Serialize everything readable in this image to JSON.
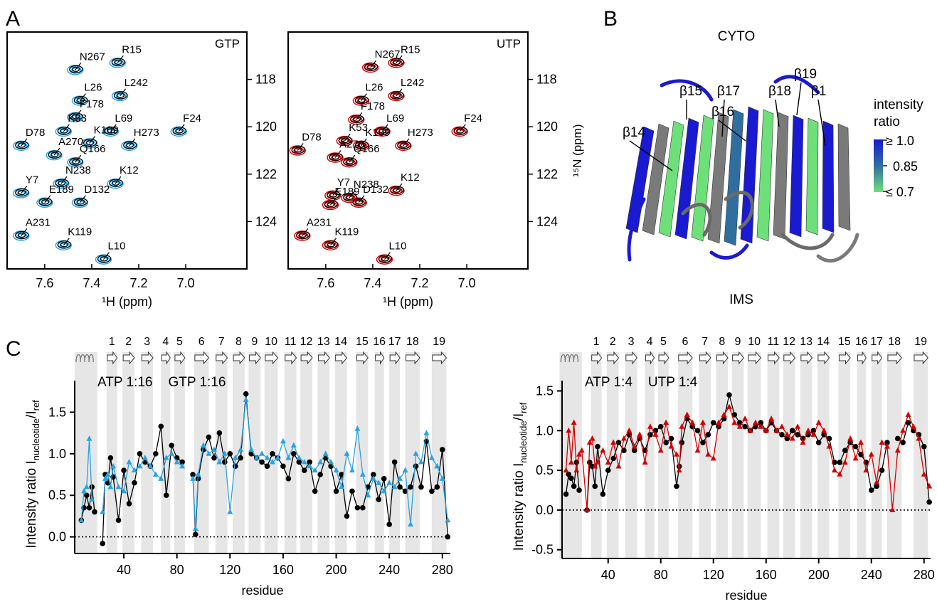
{
  "panel_labels": [
    "A",
    "B",
    "C"
  ],
  "topology": {
    "helix_range": [
      3,
      20
    ],
    "strands": [
      {
        "label": "1",
        "range": [
          27,
          35
        ]
      },
      {
        "label": "2",
        "range": [
          39,
          48
        ]
      },
      {
        "label": "3",
        "range": [
          53,
          62
        ]
      },
      {
        "label": "4",
        "range": [
          68,
          75
        ]
      },
      {
        "label": "5",
        "range": [
          78,
          86
        ]
      },
      {
        "label": "6",
        "range": [
          93,
          104
        ]
      },
      {
        "label": "7",
        "range": [
          109,
          118
        ]
      },
      {
        "label": "8",
        "range": [
          122,
          131
        ]
      },
      {
        "label": "9",
        "range": [
          134,
          143
        ]
      },
      {
        "label": "10",
        "range": [
          146,
          156
        ]
      },
      {
        "label": "11",
        "range": [
          161,
          170
        ]
      },
      {
        "label": "12",
        "range": [
          173,
          182
        ]
      },
      {
        "label": "13",
        "range": [
          186,
          195
        ]
      },
      {
        "label": "14",
        "range": [
          199,
          208
        ]
      },
      {
        "label": "15",
        "range": [
          215,
          224
        ]
      },
      {
        "label": "16",
        "range": [
          229,
          236
        ]
      },
      {
        "label": "17",
        "range": [
          240,
          248
        ]
      },
      {
        "label": "18",
        "range": [
          252,
          263
        ]
      },
      {
        "label": "19",
        "range": [
          272,
          283
        ]
      }
    ]
  },
  "structure": {
    "top": "CYTO",
    "bottom": "IMS",
    "strands": [
      "β14",
      "β15",
      "β16",
      "β17",
      "β18",
      "β19",
      "β1"
    ],
    "colorbar": {
      "title": [
        "intensity",
        "ratio"
      ],
      "labels": [
        "≥ 1.0",
        "0.85",
        "≤ 0.7"
      ],
      "colors": [
        "#1a1ad0",
        "#2f6fa0",
        "#6ee07a"
      ]
    }
  },
  "chart_data": [
    {
      "type": "spectrum",
      "label": "GTP",
      "xlabel": "¹H (ppm)",
      "xlim": [
        7.76,
        6.74
      ],
      "ylim": [
        116,
        126
      ],
      "y_inverted": true,
      "xticks": [
        7.6,
        7.4,
        7.2,
        {
          "value": 7,
          "label": "7.0"
        }
      ],
      "yticks": [
        118,
        120,
        122,
        124
      ],
      "colors": {
        "reference": "#000000",
        "nucleotide": "#29a3e0"
      },
      "peaks": [
        {
          "label": "N267",
          "x": 7.47,
          "y": 117.6
        },
        {
          "label": "R15",
          "x": 7.29,
          "y": 117.3
        },
        {
          "label": "L26",
          "x": 7.45,
          "y": 118.9
        },
        {
          "label": "L242",
          "x": 7.28,
          "y": 118.7
        },
        {
          "label": "F178",
          "x": 7.47,
          "y": 119.6
        },
        {
          "label": "F24",
          "x": 7.03,
          "y": 120.2
        },
        {
          "label": "K53",
          "x": 7.52,
          "y": 120.2
        },
        {
          "label": "L69",
          "x": 7.32,
          "y": 120.2
        },
        {
          "label": "D78",
          "x": 7.7,
          "y": 120.8
        },
        {
          "label": "K109",
          "x": 7.41,
          "y": 120.7
        },
        {
          "label": "H273",
          "x": 7.24,
          "y": 120.8
        },
        {
          "label": "A270",
          "x": 7.56,
          "y": 121.2
        },
        {
          "label": "Q166",
          "x": 7.47,
          "y": 121.5
        },
        {
          "label": "K12",
          "x": 7.3,
          "y": 122.4
        },
        {
          "label": "N238",
          "x": 7.53,
          "y": 122.4
        },
        {
          "label": "Y7",
          "x": 7.7,
          "y": 122.8
        },
        {
          "label": "E189",
          "x": 7.6,
          "y": 123.2
        },
        {
          "label": "D132",
          "x": 7.45,
          "y": 123.2
        },
        {
          "label": "A231",
          "x": 7.7,
          "y": 124.6
        },
        {
          "label": "K119",
          "x": 7.52,
          "y": 125.0
        },
        {
          "label": "L10",
          "x": 7.35,
          "y": 125.6
        }
      ]
    },
    {
      "type": "spectrum",
      "label": "UTP",
      "xlabel": "¹H (ppm)",
      "ylabel": "¹⁵N (ppm)",
      "xlim": [
        7.76,
        6.74
      ],
      "ylim": [
        116,
        126
      ],
      "y_inverted": true,
      "xticks": [
        7.6,
        7.4,
        7.2,
        {
          "value": 7,
          "label": "7.0"
        }
      ],
      "yticks": [
        118,
        120,
        122,
        124
      ],
      "colors": {
        "reference": "#000000",
        "nucleotide": "#d40000"
      },
      "peaks": [
        {
          "label": "N267",
          "x": 7.41,
          "y": 117.5
        },
        {
          "label": "R15",
          "x": 7.3,
          "y": 117.3
        },
        {
          "label": "L26",
          "x": 7.45,
          "y": 118.9
        },
        {
          "label": "L242",
          "x": 7.3,
          "y": 118.7
        },
        {
          "label": "F178",
          "x": 7.47,
          "y": 119.7
        },
        {
          "label": "F24",
          "x": 7.03,
          "y": 120.2
        },
        {
          "label": "K53",
          "x": 7.52,
          "y": 120.6
        },
        {
          "label": "L69",
          "x": 7.36,
          "y": 120.2
        },
        {
          "label": "D78",
          "x": 7.72,
          "y": 121.0
        },
        {
          "label": "K109",
          "x": 7.45,
          "y": 120.8
        },
        {
          "label": "H273",
          "x": 7.27,
          "y": 120.8
        },
        {
          "label": "A270",
          "x": 7.56,
          "y": 121.3
        },
        {
          "label": "Q166",
          "x": 7.5,
          "y": 121.5
        },
        {
          "label": "K12",
          "x": 7.3,
          "y": 122.7
        },
        {
          "label": "N238",
          "x": 7.5,
          "y": 123.0
        },
        {
          "label": "Y7",
          "x": 7.57,
          "y": 122.9
        },
        {
          "label": "E189",
          "x": 7.58,
          "y": 123.3
        },
        {
          "label": "D132",
          "x": 7.46,
          "y": 123.2
        },
        {
          "label": "A231",
          "x": 7.7,
          "y": 124.6
        },
        {
          "label": "K119",
          "x": 7.58,
          "y": 125.0
        },
        {
          "label": "L10",
          "x": 7.35,
          "y": 125.6
        }
      ]
    },
    {
      "type": "line",
      "xlabel": "residue",
      "ylabel": [
        "Intensity ratio I",
        "nucleotide",
        "/I",
        "ref"
      ],
      "hline": 0,
      "xlim": [
        3,
        286
      ],
      "ylim": [
        -0.2,
        1.88
      ],
      "xticks": [
        40,
        80,
        120,
        160,
        200,
        240,
        280
      ],
      "yticks": [
        {
          "value": 0,
          "label": "0.0"
        },
        0.5,
        {
          "value": 1,
          "label": "1.0"
        },
        1.5
      ],
      "x": [
        8,
        10,
        12,
        14,
        16,
        18,
        20,
        24,
        26,
        28,
        30,
        32,
        36,
        40,
        44,
        48,
        52,
        56,
        60,
        64,
        68,
        72,
        76,
        80,
        84,
        88,
        92,
        94,
        96,
        100,
        104,
        108,
        112,
        116,
        120,
        124,
        128,
        132,
        136,
        140,
        144,
        148,
        152,
        156,
        160,
        164,
        168,
        172,
        176,
        180,
        184,
        188,
        192,
        196,
        200,
        204,
        208,
        212,
        216,
        220,
        224,
        228,
        232,
        236,
        240,
        244,
        248,
        252,
        256,
        260,
        264,
        268,
        272,
        276,
        280,
        284
      ],
      "series": [
        {
          "name": "ATP 1:16",
          "color": "#000000",
          "marker": "circle",
          "values": [
            0.2,
            0.35,
            0.5,
            0.35,
            0.6,
            0.3,
            null,
            -0.08,
            0.75,
            0.65,
            0.95,
            0.72,
            0.2,
            0.8,
            0.4,
            0.65,
            1.0,
            0.9,
            0.85,
            1.0,
            1.33,
            0.5,
            1.1,
            0.95,
            0.9,
            null,
            0.75,
            0.03,
            0.7,
            1.05,
            1.2,
            0.95,
            1.25,
            0.9,
            1.0,
            0.85,
            0.95,
            1.72,
            1.0,
            0.95,
            0.9,
            0.85,
            1.0,
            0.95,
            0.85,
            0.7,
            1.0,
            0.9,
            0.8,
            0.9,
            0.55,
            0.75,
            0.95,
            0.85,
            0.55,
            0.75,
            0.25,
            0.55,
            0.35,
            0.35,
            0.6,
            0.75,
            0.45,
            0.7,
            0.15,
            0.9,
            0.6,
            0.55,
            0.6,
            0.85,
            0.6,
            1.15,
            0.55,
            0.6,
            1.05,
            0.0
          ]
        },
        {
          "name": "GTP 1:16",
          "color": "#29a3e0",
          "marker": "triangle",
          "values": [
            0.2,
            0.55,
            0.6,
            1.18,
            0.45,
            null,
            null,
            0.3,
            0.7,
            0.75,
            0.6,
            0.85,
            0.6,
            0.55,
            0.9,
            0.8,
            0.85,
            0.95,
            0.85,
            0.75,
            0.7,
            0.95,
            1.0,
            0.9,
            0.85,
            null,
            0.7,
            0.1,
            0.75,
            1.1,
            1.0,
            1.05,
            0.9,
            1.0,
            0.3,
            0.95,
            1.05,
            1.65,
            1.05,
            0.95,
            1.0,
            0.95,
            0.9,
            0.95,
            1.15,
            0.95,
            1.1,
            0.95,
            0.9,
            0.85,
            0.8,
            0.9,
            1.0,
            0.9,
            0.8,
            0.6,
            1.0,
            0.8,
            1.3,
            0.75,
            0.5,
            0.7,
            0.65,
            0.55,
            0.65,
            0.6,
            0.7,
            0.8,
            0.15,
            1.0,
            0.9,
            1.25,
            0.95,
            0.85,
            0.7,
            0.2
          ]
        }
      ]
    },
    {
      "type": "line",
      "xlabel": "residue",
      "ylabel": [
        "Intensity ratio I",
        "nucleotide",
        "/I",
        "ref"
      ],
      "hline": 0,
      "xlim": [
        5,
        285
      ],
      "ylim": [
        -0.61,
        1.63
      ],
      "xticks": [
        40,
        80,
        120,
        160,
        200,
        240,
        280
      ],
      "yticks": [
        -0.5,
        {
          "value": 0,
          "label": "0.0"
        },
        0.5,
        {
          "value": 1,
          "label": "1.0"
        },
        1.5
      ],
      "x": [
        8,
        10,
        12,
        14,
        16,
        18,
        20,
        24,
        26,
        28,
        30,
        32,
        36,
        40,
        44,
        48,
        52,
        56,
        60,
        64,
        68,
        72,
        76,
        80,
        84,
        88,
        92,
        94,
        96,
        100,
        104,
        108,
        112,
        116,
        120,
        124,
        128,
        132,
        136,
        140,
        144,
        148,
        152,
        156,
        160,
        164,
        168,
        172,
        176,
        180,
        184,
        188,
        192,
        196,
        200,
        204,
        208,
        212,
        216,
        220,
        224,
        228,
        232,
        236,
        240,
        244,
        248,
        252,
        256,
        260,
        264,
        268,
        272,
        276,
        280,
        284
      ],
      "series": [
        {
          "name": "ATP 1:4",
          "color": "#000000",
          "marker": "circle",
          "values": [
            0.2,
            0.45,
            0.4,
            0.3,
            0.6,
            0.25,
            null,
            0.0,
            0.6,
            0.55,
            0.3,
            0.8,
            0.2,
            0.5,
            0.65,
            0.85,
            0.75,
            0.95,
            0.75,
            0.9,
            0.75,
            0.95,
            1.0,
            1.05,
            0.85,
            0.9,
            0.3,
            0.55,
            0.85,
            1.15,
            1.05,
            1.0,
            0.85,
            0.95,
            1.1,
            1.05,
            1.15,
            1.45,
            1.2,
            1.1,
            1.05,
            1.0,
            1.05,
            1.1,
            1.0,
            1.1,
            1.0,
            0.95,
            0.9,
            1.0,
            0.95,
            0.9,
            0.95,
            1.0,
            0.85,
            0.95,
            0.9,
            0.6,
            0.6,
            0.75,
            0.85,
            0.8,
            0.7,
            0.6,
            0.25,
            0.3,
            0.5,
            0.85,
            null,
            0.9,
            0.85,
            1.1,
            1.0,
            0.95,
            0.8,
            0.1
          ]
        },
        {
          "name": "UTP 1:4",
          "color": "#d40000",
          "marker": "triangle",
          "values": [
            0.5,
            1.0,
            0.6,
            1.1,
            0.5,
            0.7,
            0.75,
            0.0,
            0.85,
            0.9,
            0.55,
            0.6,
            0.75,
            0.6,
            0.85,
            0.55,
            0.9,
            1.0,
            0.8,
            0.95,
            0.6,
            1.05,
            0.95,
            0.75,
            1.1,
            0.8,
            0.7,
            0.5,
            1.05,
            1.2,
            1.1,
            0.75,
            1.1,
            0.7,
            0.65,
            1.1,
            1.2,
            1.3,
            1.1,
            1.05,
            1.15,
            1.0,
            1.1,
            1.05,
            1.0,
            1.15,
            1.0,
            1.05,
            0.95,
            0.9,
            1.05,
            0.85,
            1.0,
            0.95,
            1.1,
            1.0,
            0.8,
            0.5,
            0.45,
            0.6,
            0.9,
            0.65,
            0.85,
            0.5,
            0.7,
            0.35,
            0.85,
            0.8,
            0.0,
            0.75,
            1.0,
            1.2,
            1.05,
            0.9,
            0.45,
            0.3
          ]
        }
      ]
    }
  ]
}
